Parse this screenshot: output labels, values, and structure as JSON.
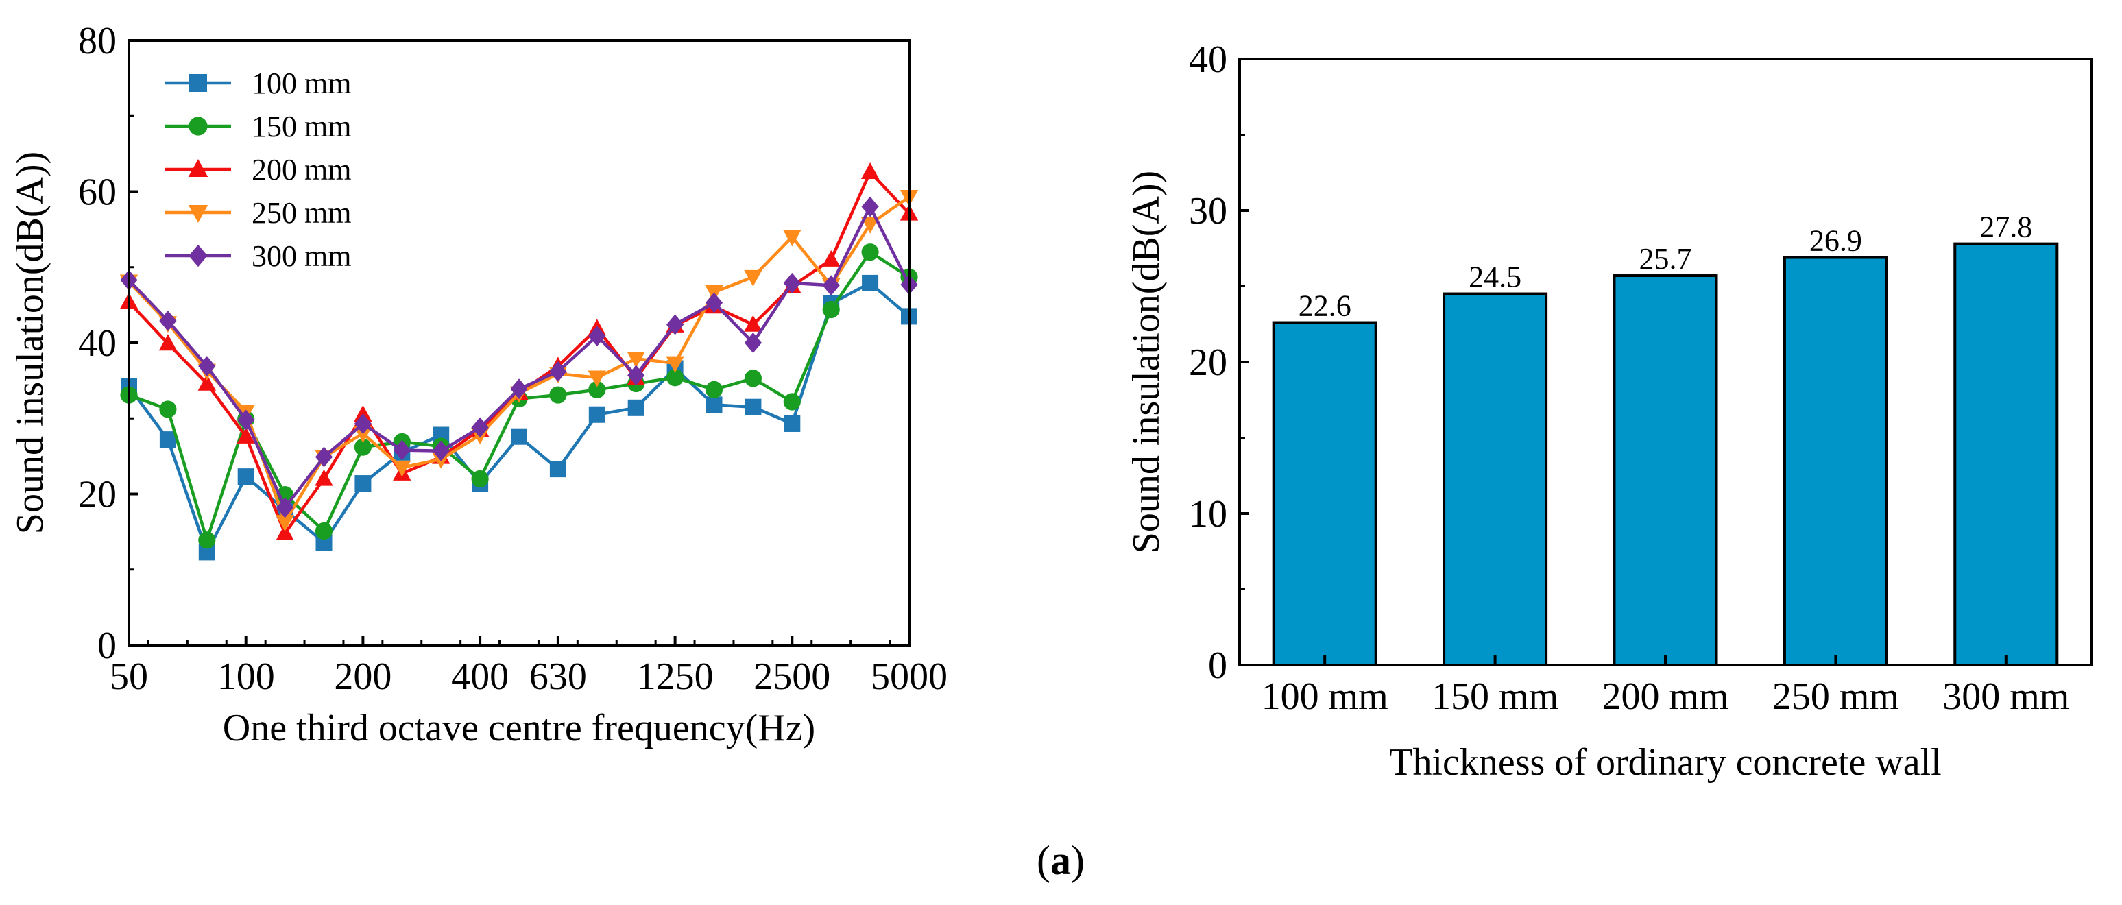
{
  "chart_data": [
    {
      "type": "line",
      "xlabel": "One third octave centre frequency(Hz)",
      "ylabel": "Sound insulation(dB(A))",
      "ylim": [
        0,
        80
      ],
      "yticks": [
        "0",
        "20",
        "40",
        "60",
        "80"
      ],
      "xticklabels": [
        {
          "label": "50",
          "index": 0
        },
        {
          "label": "100",
          "index": 3
        },
        {
          "label": "200",
          "index": 6
        },
        {
          "label": "400",
          "index": 9
        },
        {
          "label": "630",
          "index": 11
        },
        {
          "label": "1250",
          "index": 14
        },
        {
          "label": "2500",
          "index": 17
        },
        {
          "label": "5000",
          "index": 20
        }
      ],
      "x": [
        "50",
        "63",
        "80",
        "100",
        "125",
        "160",
        "200",
        "250",
        "315",
        "400",
        "500",
        "630",
        "800",
        "1000",
        "1250",
        "1600",
        "2000",
        "2500",
        "3150",
        "4000",
        "5000"
      ],
      "legend_position": "top-left",
      "series": [
        {
          "name": "100 mm",
          "color": "#1f77b4",
          "marker": "square",
          "values": [
            34.2,
            27.2,
            12.3,
            22.3,
            17.9,
            13.6,
            21.4,
            25.5,
            27.8,
            21.4,
            27.6,
            23.3,
            30.5,
            31.4,
            36.6,
            31.8,
            31.5,
            29.3,
            45.2,
            47.9,
            43.5
          ]
        },
        {
          "name": "150 mm",
          "color": "#1a9e22",
          "marker": "circle",
          "values": [
            33.1,
            31.2,
            13.9,
            29.9,
            19.9,
            15.1,
            26.2,
            26.9,
            26.3,
            22.0,
            32.6,
            33.1,
            33.8,
            34.6,
            35.4,
            33.8,
            35.3,
            32.2,
            44.4,
            52.0,
            48.7
          ]
        },
        {
          "name": "200 mm",
          "color": "#f20f0f",
          "marker": "triangle-up",
          "values": [
            45.4,
            39.9,
            34.6,
            27.6,
            14.8,
            22.0,
            30.5,
            22.7,
            24.9,
            28.5,
            33.4,
            36.9,
            41.9,
            35.3,
            42.3,
            44.8,
            42.4,
            47.5,
            51.0,
            62.6,
            57.1
          ]
        },
        {
          "name": "250 mm",
          "color": "#ff8c1a",
          "marker": "triangle-down",
          "values": [
            48.1,
            42.6,
            36.3,
            30.9,
            16.3,
            24.9,
            28.0,
            23.5,
            24.6,
            27.8,
            33.3,
            35.9,
            35.4,
            37.9,
            37.3,
            46.7,
            48.7,
            54.0,
            47.6,
            55.7,
            59.3
          ]
        },
        {
          "name": "300 mm",
          "color": "#7030a0",
          "marker": "diamond",
          "values": [
            48.3,
            42.9,
            36.9,
            29.8,
            18.2,
            24.9,
            29.3,
            25.8,
            25.7,
            28.8,
            33.9,
            36.2,
            40.9,
            35.7,
            42.4,
            45.3,
            40.0,
            47.9,
            47.6,
            58.0,
            47.7
          ]
        }
      ]
    },
    {
      "type": "bar",
      "xlabel": "Thickness of ordinary concrete wall",
      "ylabel": "Sound insulation(dB(A))",
      "ylim": [
        0,
        40
      ],
      "yticks": [
        "0",
        "10",
        "20",
        "30",
        "40"
      ],
      "categories": [
        "100 mm",
        "150 mm",
        "200 mm",
        "250 mm",
        "300 mm"
      ],
      "values": [
        22.6,
        24.5,
        25.7,
        26.9,
        27.8
      ],
      "value_labels": [
        "22.6",
        "24.5",
        "25.7",
        "26.9",
        "27.8"
      ],
      "bar_color": "#0095c8"
    }
  ],
  "caption_open": "(",
  "caption_letter": "a",
  "caption_close": ")"
}
